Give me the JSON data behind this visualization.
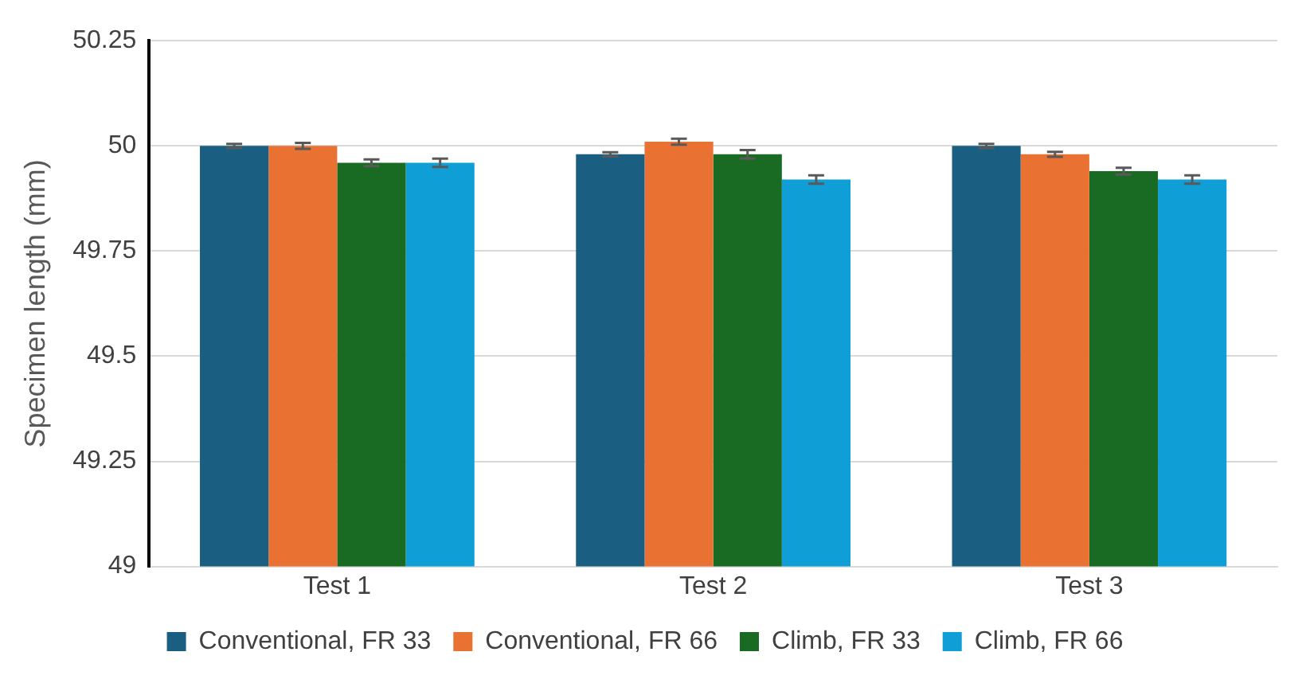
{
  "chart_data": {
    "type": "bar",
    "ylabel": "Specimen length (mm)",
    "categories": [
      "Test 1",
      "Test 2",
      "Test 3"
    ],
    "series": [
      {
        "name": "Conventional, FR 33",
        "color": "#1a5e82",
        "values": [
          50,
          49.98,
          50
        ],
        "errors": [
          0.005,
          0.005,
          0.005
        ]
      },
      {
        "name": "Conventional, FR 66",
        "color": "#e97132",
        "values": [
          50,
          50.01,
          49.98
        ],
        "errors": [
          0.007,
          0.007,
          0.006
        ]
      },
      {
        "name": "Climb, FR 33",
        "color": "#196b24",
        "values": [
          49.96,
          49.98,
          49.94
        ],
        "errors": [
          0.008,
          0.01,
          0.008
        ]
      },
      {
        "name": "Climb, FR 66",
        "color": "#0f9ed5",
        "values": [
          49.96,
          49.92,
          49.92
        ],
        "errors": [
          0.01,
          0.01,
          0.01
        ]
      }
    ],
    "ylim": [
      49,
      50.25
    ],
    "yticks": [
      49,
      49.25,
      49.5,
      49.75,
      50,
      50.25
    ],
    "grid": "y",
    "legend": "bottom"
  }
}
